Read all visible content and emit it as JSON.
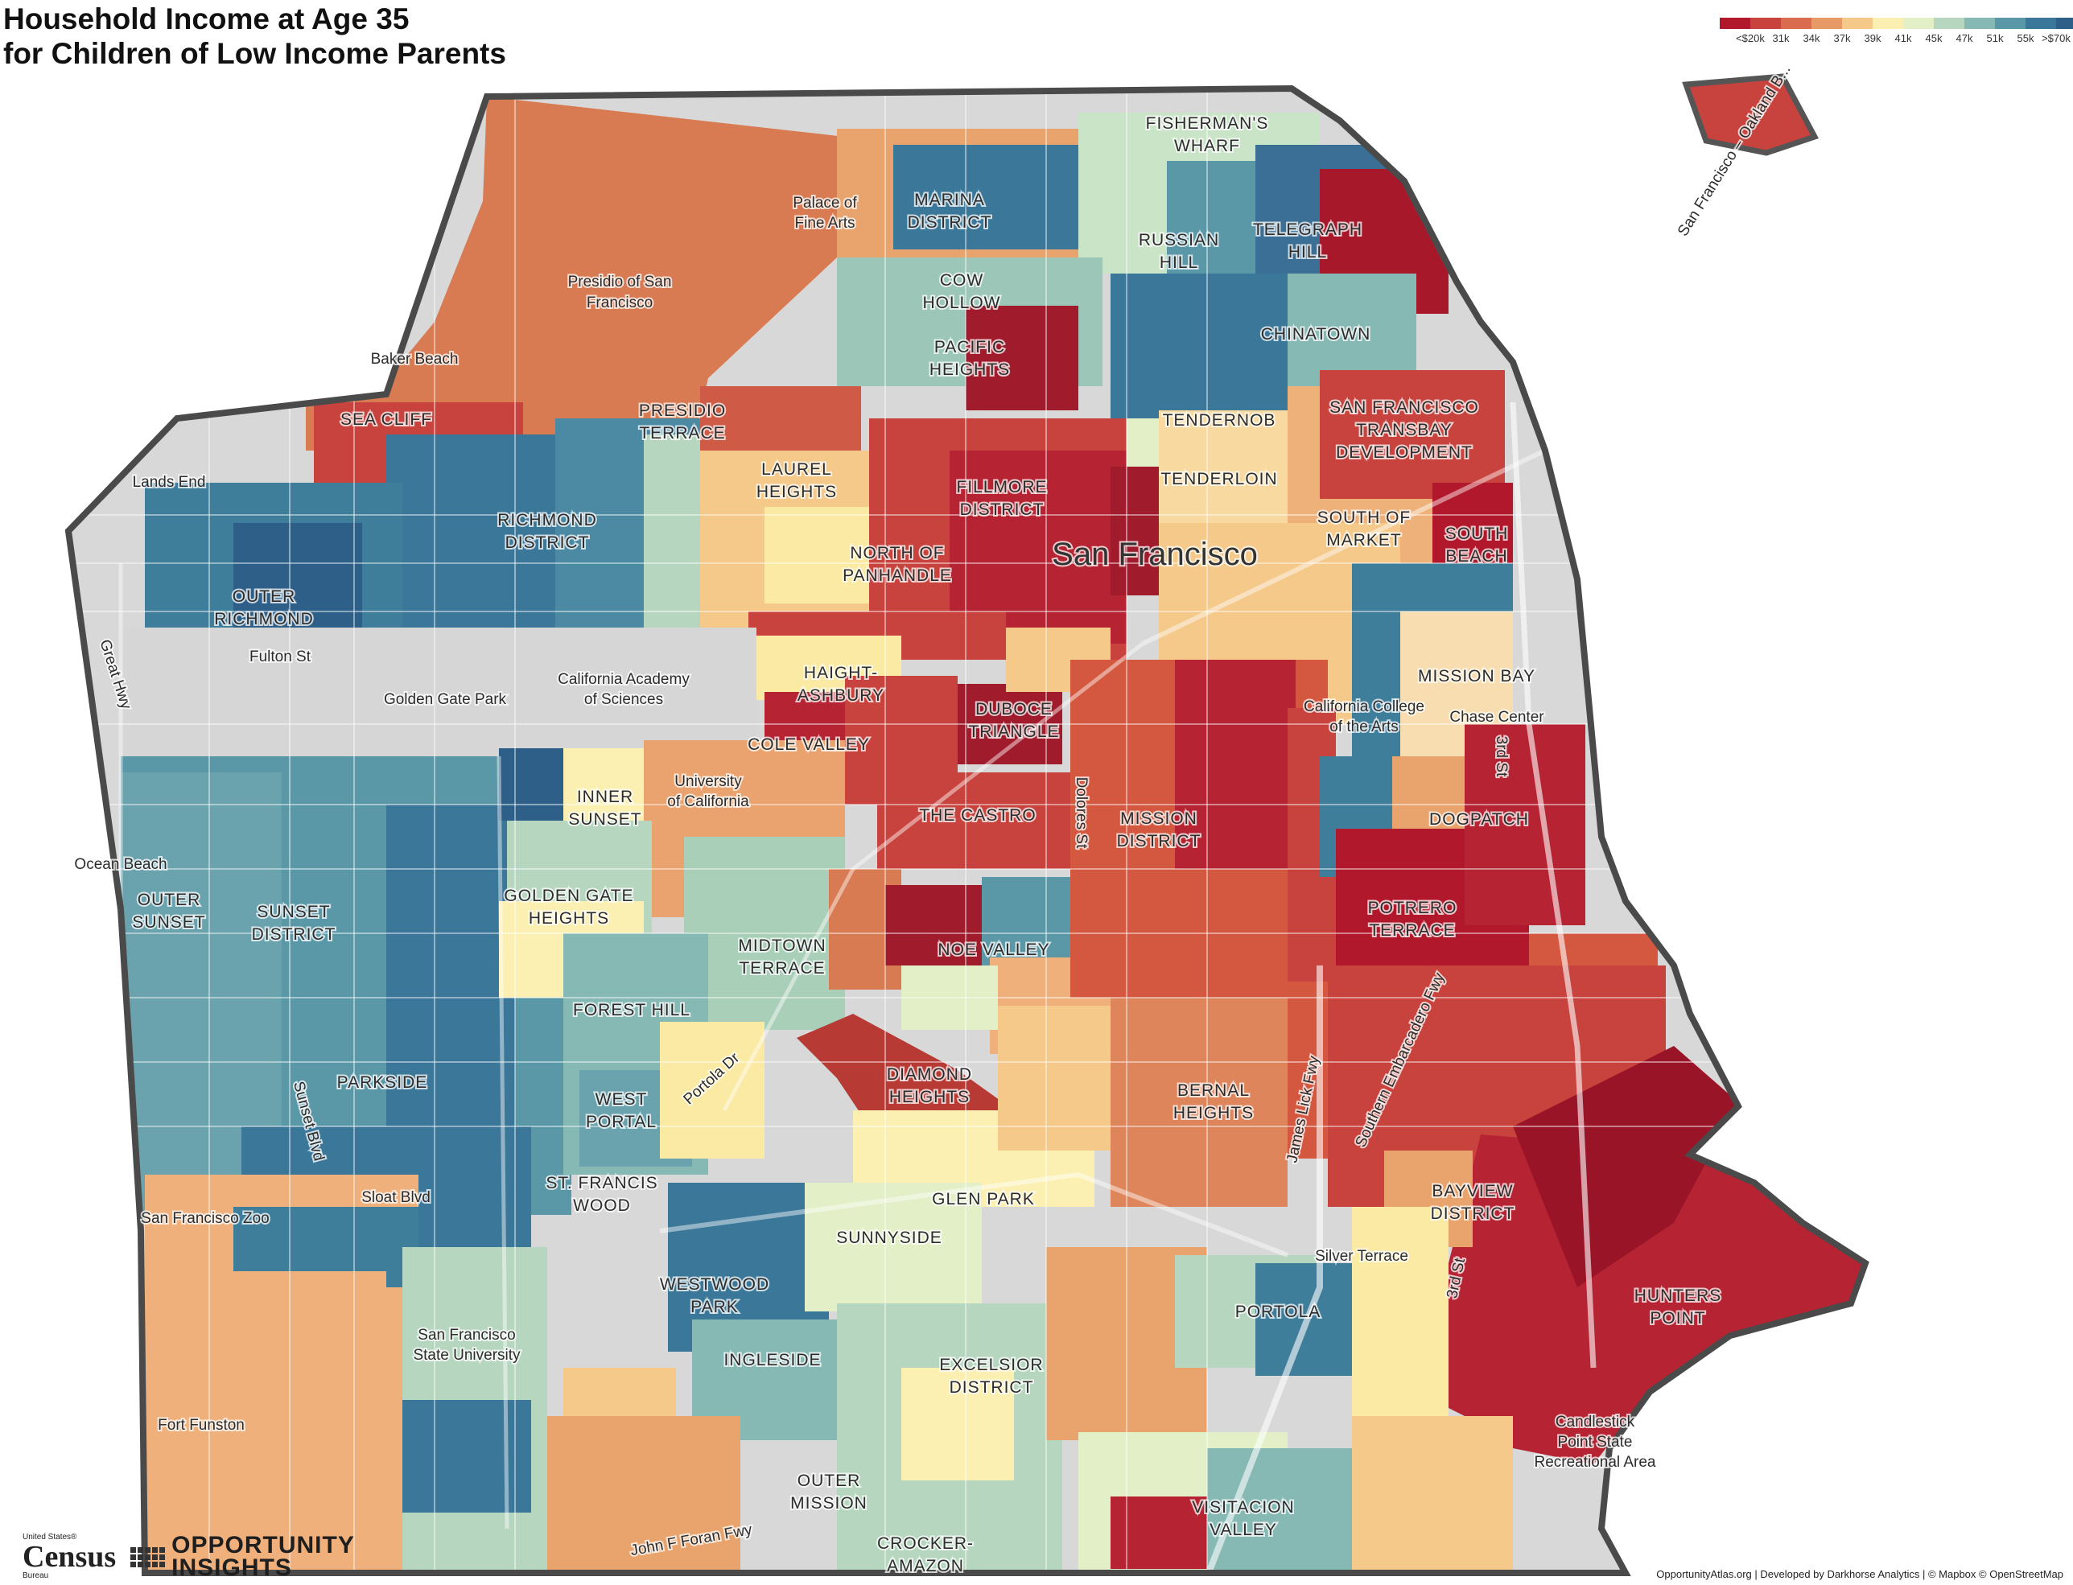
{
  "title": {
    "line1": "Household Income at Age 35",
    "line2": "for Children of Low Income Parents"
  },
  "legend": {
    "colors": [
      "#b2182b",
      "#c8433d",
      "#d96b4f",
      "#e89a66",
      "#f4c98a",
      "#fbf0b2",
      "#e2efc7",
      "#b6d6c0",
      "#86b9b4",
      "#5a98a8",
      "#3b7798",
      "#2d5f88"
    ],
    "ticks": [
      "<$20k",
      "31k",
      "34k",
      "37k",
      "39k",
      "41k",
      "45k",
      "47k",
      "51k",
      "55k",
      ">$70k"
    ]
  },
  "map_labels": {
    "fishermans_wharf": [
      "FISHERMAN'S",
      "WHARF"
    ],
    "palace_of_fine_arts": [
      "Palace of",
      "Fine Arts"
    ],
    "marina_district": [
      "MARINA",
      "DISTRICT"
    ],
    "russian_hill": [
      "RUSSIAN",
      "HILL"
    ],
    "telegraph_hill": [
      "TELEGRAPH",
      "HILL"
    ],
    "presidio": [
      "Presidio of San",
      "Francisco"
    ],
    "cow_hollow": [
      "COW",
      "HOLLOW"
    ],
    "chinatown": [
      "CHINATOWN"
    ],
    "baker_beach": [
      "Baker Beach"
    ],
    "pacific_heights": [
      "PACIFIC",
      "HEIGHTS"
    ],
    "sea_cliff": [
      "SEA CLIFF"
    ],
    "presidio_terrace": [
      "PRESIDIO",
      "TERRACE"
    ],
    "tendernob": [
      "TENDERNOB"
    ],
    "transbay": [
      "SAN FRANCISCO",
      "TRANSBAY",
      "DEVELOPMENT"
    ],
    "lands_end": [
      "Lands End"
    ],
    "laurel_heights": [
      "LAUREL",
      "HEIGHTS"
    ],
    "tenderloin": [
      "TENDERLOIN"
    ],
    "richmond_district": [
      "RICHMOND",
      "DISTRICT"
    ],
    "fillmore_district": [
      "FILLMORE",
      "DISTRICT"
    ],
    "south_of_market": [
      "SOUTH OF",
      "MARKET"
    ],
    "south_beach": [
      "SOUTH",
      "BEACH"
    ],
    "san_francisco": [
      "San Francisco"
    ],
    "north_of_panhandle": [
      "NORTH OF",
      "PANHANDLE"
    ],
    "outer_richmond": [
      "OUTER",
      "RICHMOND"
    ],
    "great_hwy": [
      "Great Hwy"
    ],
    "fulton_st": [
      "Fulton St"
    ],
    "haight_ashbury": [
      "HAIGHT-",
      "ASHBURY"
    ],
    "mission_bay": [
      "MISSION BAY"
    ],
    "golden_gate_park": [
      "Golden Gate Park"
    ],
    "cal_academy": [
      "California Academy",
      "of Sciences"
    ],
    "duboce_triangle": [
      "DUBOCE",
      "TRIANGLE"
    ],
    "cca": [
      "California College",
      "of the Arts"
    ],
    "chase_center": [
      "Chase Center"
    ],
    "cole_valley": [
      "COLE VALLEY"
    ],
    "third_st_north": [
      "3rd St"
    ],
    "dolores_st": [
      "Dolores St"
    ],
    "inner_sunset": [
      "INNER",
      "SUNSET"
    ],
    "university_of_california": [
      "University",
      "of California"
    ],
    "the_castro": [
      "THE CASTRO"
    ],
    "dogpatch": [
      "DOGPATCH"
    ],
    "mission_district": [
      "MISSION",
      "DISTRICT"
    ],
    "ocean_beach": [
      "Ocean Beach"
    ],
    "outer_sunset": [
      "OUTER",
      "SUNSET"
    ],
    "golden_gate_heights": [
      "GOLDEN GATE",
      "HEIGHTS"
    ],
    "sunset_district": [
      "SUNSET",
      "DISTRICT"
    ],
    "potrero_terrace": [
      "POTRERO",
      "TERRACE"
    ],
    "midtown_terrace": [
      "MIDTOWN",
      "TERRACE"
    ],
    "noe_valley": [
      "NOE VALLEY"
    ],
    "forest_hill": [
      "FOREST HILL"
    ],
    "portola_dr": [
      "Portola Dr"
    ],
    "diamond_heights": [
      "DIAMOND",
      "HEIGHTS"
    ],
    "parkside": [
      "PARKSIDE"
    ],
    "west_portal": [
      "WEST",
      "PORTAL"
    ],
    "bernal_heights": [
      "BERNAL",
      "HEIGHTS"
    ],
    "james_lick_fwy": [
      "James Lick Fwy"
    ],
    "southern_embarcadero": [
      "Southern Embarcadero Fwy"
    ],
    "sunset_blvd": [
      "Sunset Blvd"
    ],
    "st_francis_wood": [
      "ST. FRANCIS",
      "WOOD"
    ],
    "glen_park": [
      "GLEN PARK"
    ],
    "bayview_district": [
      "BAYVIEW",
      "DISTRICT"
    ],
    "sloat_blvd": [
      "Sloat Blvd"
    ],
    "sf_zoo": [
      "San Francisco Zoo"
    ],
    "sunnyside": [
      "SUNNYSIDE"
    ],
    "silver_terrace": [
      "Silver Terrace"
    ],
    "third_st_south": [
      "3rd St"
    ],
    "westwood_park": [
      "WESTWOOD",
      "PARK"
    ],
    "hunters_point": [
      "HUNTERS",
      "POINT"
    ],
    "portola": [
      "PORTOLA"
    ],
    "sf_state": [
      "San Francisco",
      "State University"
    ],
    "ingleside": [
      "INGLESIDE"
    ],
    "excelsior_district": [
      "EXCELSIOR",
      "DISTRICT"
    ],
    "fort_funston": [
      "Fort Funston"
    ],
    "candlestick": [
      "Candlestick",
      "Point State",
      "Recreational Area"
    ],
    "outer_mission": [
      "OUTER",
      "MISSION"
    ],
    "visitacion_valley": [
      "VISITACION",
      "VALLEY"
    ],
    "john_f_foran": [
      "John F Foran Fwy"
    ],
    "crocker_amazon": [
      "CROCKER-",
      "AMAZON"
    ],
    "bay_bridge": [
      "San Francisco – Oakland B..."
    ]
  },
  "logos": {
    "census_line1": "United States®",
    "census_line2": "Census",
    "census_line3": "Bureau",
    "oi_line1": "OPPORTUNITY",
    "oi_line2": "INSIGHTS"
  },
  "footer": "OpportunityAtlas.org | Developed by Darkhorse Analytics | © Mapbox © OpenStreetMap"
}
